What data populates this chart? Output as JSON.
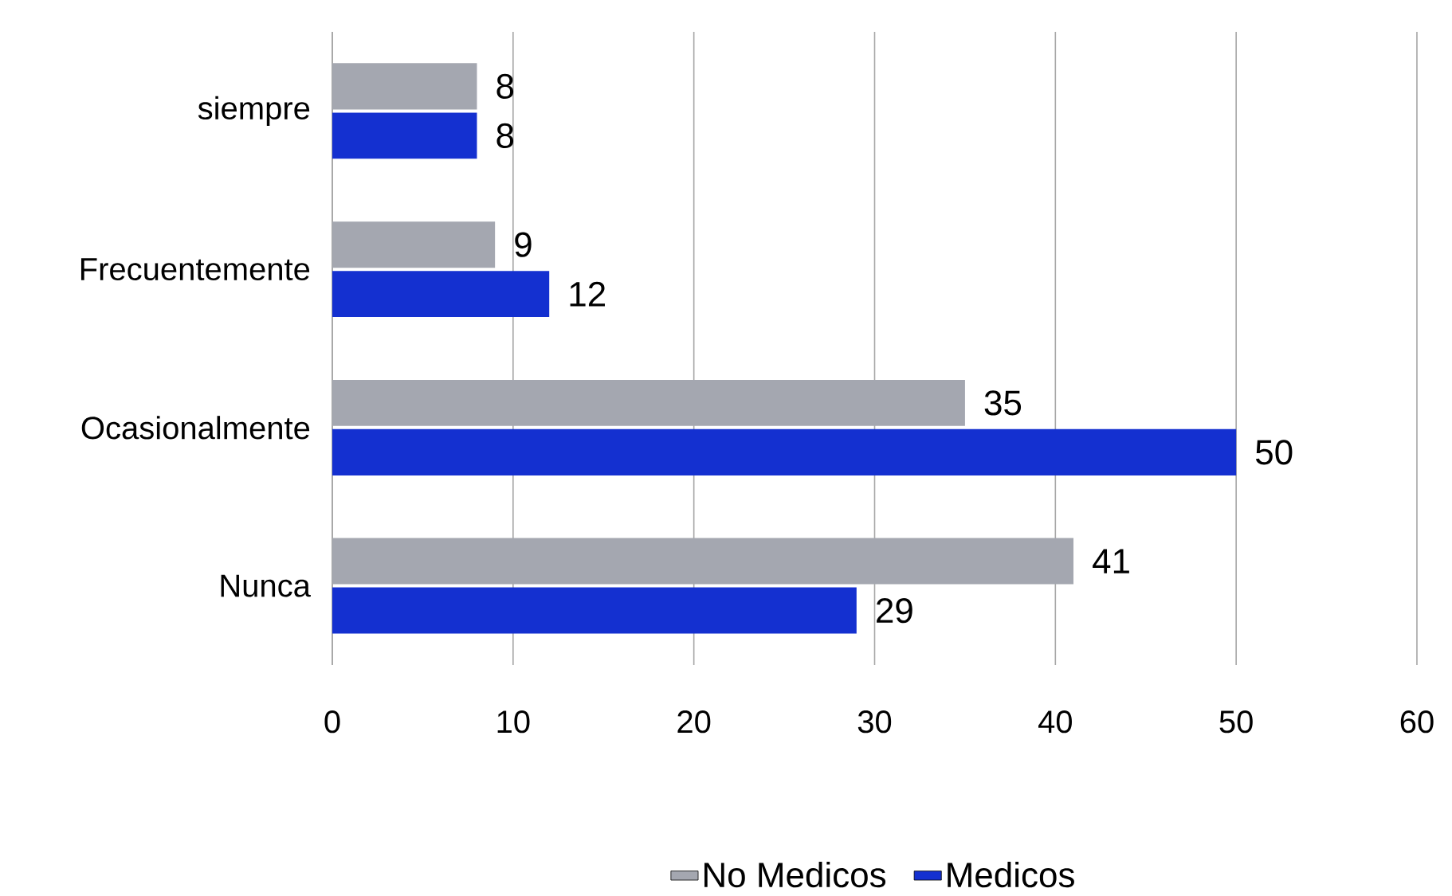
{
  "chart_data": {
    "type": "bar",
    "orientation": "horizontal",
    "categories": [
      "siempre",
      "Frecuentemente",
      "Ocasionalmente",
      "Nunca"
    ],
    "series": [
      {
        "name": "No Medicos",
        "color": "#a4a7b0",
        "values": [
          8,
          9,
          35,
          41
        ]
      },
      {
        "name": "Medicos",
        "color": "#1430d0",
        "values": [
          8,
          12,
          50,
          29
        ]
      }
    ],
    "xlim": [
      0,
      60
    ],
    "xticks": [
      0,
      10,
      20,
      30,
      40,
      50,
      60
    ],
    "grid": "x",
    "legend": "bottom",
    "data_labels": true
  }
}
